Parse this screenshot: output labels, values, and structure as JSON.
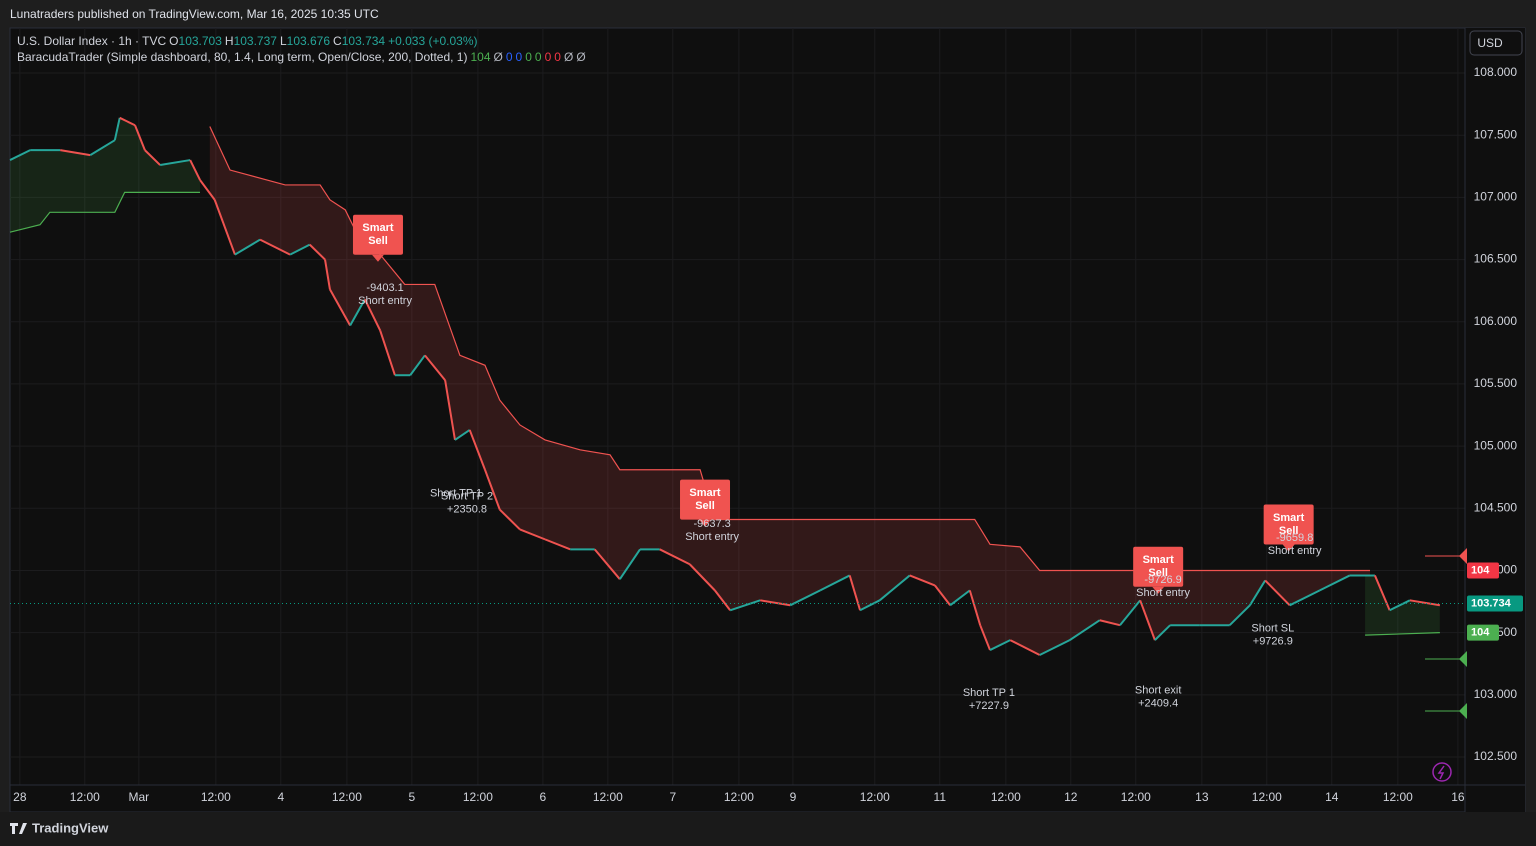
{
  "header": {
    "text": "Lunatraders published on TradingView.com, Mar 16, 2025 10:35 UTC"
  },
  "legend": {
    "symbol": "U.S. Dollar Index · 1h · TVC",
    "ohlc": [
      {
        "label": "O",
        "value": 103.703
      },
      {
        "label": "H",
        "value": 103.737
      },
      {
        "label": "L",
        "value": 103.676
      },
      {
        "label": "C",
        "value": 103.734
      }
    ],
    "change": "+0.033 (+0.03%)",
    "indicator": "BaracudaTrader (Simple dashboard, 80, 1.4, Long term, Open/Close, 200, Dotted, 1)",
    "indicator_values": [
      "104",
      "Ø",
      "0",
      "0",
      "0",
      "0",
      "0",
      "0",
      "Ø",
      "Ø"
    ],
    "indicator_colors": [
      "#4caf50",
      "#b2b5be",
      "#2962ff",
      "#2962ff",
      "#4caf50",
      "#4caf50",
      "#f23645",
      "#f23645",
      "#b2b5be",
      "#b2b5be"
    ]
  },
  "currency": "USD",
  "footer": "TradingView",
  "chart_data": {
    "type": "line",
    "xlim": [
      0,
      266.5
    ],
    "ylim": [
      102.275,
      108.362
    ],
    "xticks": [
      {
        "value": 1.8,
        "label": "28"
      },
      {
        "value": 13.7,
        "label": "12:00"
      },
      {
        "value": 23.6,
        "label": "Mar"
      },
      {
        "value": 37.7,
        "label": "12:00"
      },
      {
        "value": 49.6,
        "label": "4"
      },
      {
        "value": 61.7,
        "label": "12:00"
      },
      {
        "value": 73.6,
        "label": "5"
      },
      {
        "value": 85.7,
        "label": "12:00"
      },
      {
        "value": 97.6,
        "label": "6"
      },
      {
        "value": 109.5,
        "label": "12:00"
      },
      {
        "value": 121.4,
        "label": "7"
      },
      {
        "value": 133.5,
        "label": "12:00"
      },
      {
        "value": 143.4,
        "label": "9"
      },
      {
        "value": 158.4,
        "label": "12:00"
      },
      {
        "value": 170.3,
        "label": "11"
      },
      {
        "value": 182.4,
        "label": "12:00"
      },
      {
        "value": 194.3,
        "label": "12"
      },
      {
        "value": 206.2,
        "label": "12:00"
      },
      {
        "value": 218.3,
        "label": "13"
      },
      {
        "value": 230.2,
        "label": "12:00"
      },
      {
        "value": 242.1,
        "label": "14"
      },
      {
        "value": 254.2,
        "label": "12:00"
      },
      {
        "value": 265.2,
        "label": "16"
      }
    ],
    "yticks": [
      {
        "value": 108,
        "label": "108.000"
      },
      {
        "value": 107.5,
        "label": "107.500"
      },
      {
        "value": 107,
        "label": "107.000"
      },
      {
        "value": 106.5,
        "label": "106.500"
      },
      {
        "value": 106,
        "label": "106.000"
      },
      {
        "value": 105.5,
        "label": "105.500"
      },
      {
        "value": 105,
        "label": "105.000"
      },
      {
        "value": 104.5,
        "label": "104.500"
      },
      {
        "value": 104,
        "label": "104.000"
      },
      {
        "value": 103.5,
        "label": "103.500"
      },
      {
        "value": 103,
        "label": "103.000"
      },
      {
        "value": 102.5,
        "label": "102.500"
      }
    ],
    "grid": true,
    "series": [
      {
        "name": "U.S. Dollar Index",
        "up_color": "#26a69a",
        "down_color": "#ef5350",
        "x": [
          0,
          3.7,
          9.2,
          14.7,
          19.2,
          20.1,
          22.9,
          24.7,
          27.5,
          33,
          34.8,
          37.5,
          41.2,
          45.8,
          51.3,
          54.9,
          57.7,
          58.6,
          62.3,
          65,
          67.8,
          70.5,
          73.3,
          76,
          79.7,
          81.5,
          84.2,
          87,
          89.7,
          93.4,
          98,
          102.6,
          107.1,
          111.7,
          115.4,
          119,
          124.5,
          129.1,
          131.9,
          137.4,
          142.9,
          148.4,
          153.8,
          155.7,
          159.3,
          164.8,
          169.4,
          172.2,
          175.8,
          177.7,
          179.5,
          183.2,
          188.6,
          194.1,
          199.6,
          203.3,
          207,
          209.7,
          212.5,
          217.9,
          223.4,
          227.1,
          229.9,
          234.4,
          239.9,
          245.4,
          250,
          252.7,
          256.4,
          261.9
        ],
        "values": [
          107.3,
          107.38,
          107.38,
          107.34,
          107.46,
          107.64,
          107.58,
          107.38,
          107.26,
          107.3,
          107.14,
          106.98,
          106.54,
          106.66,
          106.54,
          106.62,
          106.5,
          106.26,
          105.97,
          106.18,
          105.93,
          105.57,
          105.57,
          105.73,
          105.53,
          105.05,
          105.13,
          104.81,
          104.49,
          104.33,
          104.25,
          104.17,
          104.17,
          103.93,
          104.17,
          104.17,
          104.05,
          103.84,
          103.68,
          103.76,
          103.72,
          103.84,
          103.96,
          103.68,
          103.76,
          103.96,
          103.88,
          103.72,
          103.84,
          103.56,
          103.36,
          103.44,
          103.32,
          103.44,
          103.6,
          103.56,
          103.76,
          103.44,
          103.56,
          103.56,
          103.56,
          103.72,
          103.92,
          103.72,
          103.84,
          103.96,
          103.96,
          103.68,
          103.76,
          103.72
        ]
      },
      {
        "name": "Trailing stop",
        "color": "#f05350",
        "fill": "rgba(239,83,80,0.16)",
        "x": [
          36.6,
          40.3,
          50.4,
          56.8,
          58.6,
          61.4,
          64.1,
          67.8,
          72.3,
          77.8,
          82.4,
          87,
          89.7,
          93.4,
          98,
          104.4,
          109.9,
          111.7,
          126.4,
          129.1,
          176.7,
          179.5,
          185,
          188.6,
          249.1
        ],
        "values": [
          107.57,
          107.22,
          107.1,
          107.1,
          106.98,
          106.9,
          106.66,
          106.54,
          106.3,
          106.3,
          105.73,
          105.65,
          105.37,
          105.17,
          105.05,
          104.97,
          104.93,
          104.81,
          104.81,
          104.41,
          104.41,
          104.21,
          104.19,
          104.0,
          104.0
        ]
      },
      {
        "name": "Support",
        "color": "#4caf50",
        "fill": "rgba(76,175,80,0.14)",
        "x": [
          0,
          5.5,
          7.3,
          19.2,
          21,
          34.8,
          null,
          248.2,
          261.9
        ],
        "values": [
          106.72,
          106.78,
          106.88,
          106.88,
          107.04,
          107.04,
          null,
          103.48,
          103.5
        ]
      }
    ],
    "annotations": [
      {
        "kind": "signal",
        "x": 67.4,
        "y": 106.7,
        "lines": [
          "Smart",
          "Sell"
        ]
      },
      {
        "kind": "text",
        "x": 68.7,
        "y": 106.22,
        "lines": [
          "-9403.1",
          "Short entry"
        ]
      },
      {
        "kind": "text",
        "x": 81.7,
        "y": 104.62,
        "lines": [
          "Short TP 1"
        ]
      },
      {
        "kind": "text",
        "x": 83.7,
        "y": 104.54,
        "lines": [
          "Short TP 2",
          "+2350.8"
        ]
      },
      {
        "kind": "signal",
        "x": 127.3,
        "y": 104.57,
        "lines": [
          "Smart",
          "Sell"
        ]
      },
      {
        "kind": "text",
        "x": 128.6,
        "y": 104.32,
        "lines": [
          "-9637.3",
          "Short entry"
        ]
      },
      {
        "kind": "text",
        "x": 179.3,
        "y": 102.96,
        "lines": [
          "Short TP 1",
          "+7227.9"
        ]
      },
      {
        "kind": "signal",
        "x": 210.3,
        "y": 104.03,
        "lines": [
          "Smart",
          "Sell"
        ]
      },
      {
        "kind": "text",
        "x": 211.2,
        "y": 103.87,
        "lines": [
          "-9726.9",
          "Short entry"
        ]
      },
      {
        "kind": "text",
        "x": 210.3,
        "y": 102.98,
        "lines": [
          "Short exit",
          "+2409.4"
        ]
      },
      {
        "kind": "signal",
        "x": 234.2,
        "y": 104.37,
        "lines": [
          "Smart",
          "Sell"
        ]
      },
      {
        "kind": "text",
        "x": 235.3,
        "y": 104.21,
        "lines": [
          "-9659.8",
          "Short entry"
        ]
      },
      {
        "kind": "text",
        "x": 231.3,
        "y": 103.48,
        "lines": [
          "Short SL",
          "+9726.9"
        ]
      }
    ],
    "price_tags": [
      {
        "value": 104,
        "label": "104",
        "color": "#f23645"
      },
      {
        "value": 103.734,
        "label": "103.734",
        "color": "#089981"
      },
      {
        "value": 103.5,
        "label": "104",
        "color": "#4caf50"
      }
    ]
  }
}
